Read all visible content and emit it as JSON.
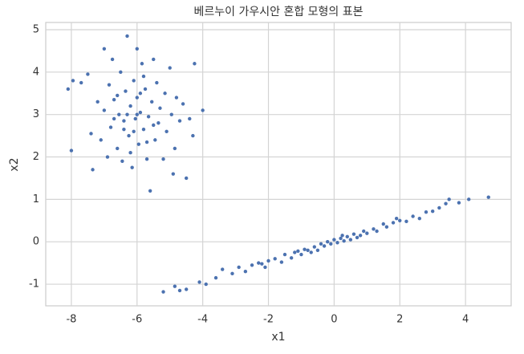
{
  "chart_data": {
    "type": "scatter",
    "title": "베르누이 가우시안 혼합 모형의 표본",
    "xlabel": "x1",
    "ylabel": "x2",
    "color": "#4c72b0",
    "grid": true,
    "xlim": [
      -8.78,
      5.39
    ],
    "ylim": [
      -1.51,
      5.17
    ],
    "xticks": [
      -8,
      -6,
      -4,
      -2,
      0,
      2,
      4
    ],
    "yticks": [
      -1,
      0,
      1,
      2,
      3,
      4,
      5
    ],
    "x": [
      -8.1,
      -8.0,
      -7.95,
      -7.7,
      -7.5,
      -7.4,
      -7.35,
      -7.2,
      -7.1,
      -7.0,
      -7.0,
      -6.9,
      -6.85,
      -6.8,
      -6.75,
      -6.7,
      -6.6,
      -6.55,
      -6.5,
      -6.45,
      -6.4,
      -6.35,
      -6.3,
      -6.25,
      -6.2,
      -6.15,
      -6.1,
      -6.05,
      -6.0,
      -6.0,
      -5.95,
      -5.9,
      -5.85,
      -5.8,
      -5.75,
      -5.7,
      -5.65,
      -5.6,
      -5.55,
      -5.5,
      -5.45,
      -5.4,
      -5.35,
      -5.3,
      -5.2,
      -5.15,
      -5.1,
      -5.0,
      -4.95,
      -4.9,
      -4.85,
      -4.8,
      -4.7,
      -4.6,
      -4.5,
      -4.4,
      -4.3,
      -4.25,
      -4.0,
      -6.3,
      -6.1,
      -5.9,
      -6.2,
      -5.8,
      -6.6,
      -5.7,
      -6.4,
      -6.0,
      -5.5,
      -6.7,
      -5.2,
      -4.85,
      -4.7,
      -4.5,
      -4.1,
      -3.9,
      -3.6,
      -3.4,
      -3.1,
      -2.9,
      -2.7,
      -2.5,
      -2.3,
      -2.1,
      -2.0,
      -1.8,
      -1.6,
      -1.5,
      -1.3,
      -1.2,
      -1.0,
      -0.9,
      -0.8,
      -0.6,
      -0.5,
      -0.4,
      -0.3,
      -0.2,
      -0.1,
      0.0,
      0.1,
      0.2,
      0.3,
      0.4,
      0.5,
      0.6,
      0.8,
      0.9,
      1.0,
      1.2,
      1.3,
      1.5,
      1.6,
      1.8,
      2.0,
      2.2,
      2.4,
      2.6,
      2.8,
      3.0,
      3.2,
      3.4,
      3.5,
      3.8,
      4.1,
      4.7,
      -2.2,
      -1.1,
      0.7,
      1.9,
      -0.7,
      0.25
    ],
    "y": [
      3.6,
      2.15,
      3.8,
      3.75,
      3.95,
      2.55,
      1.7,
      3.3,
      2.4,
      4.55,
      3.1,
      2.0,
      3.7,
      2.7,
      4.3,
      3.35,
      2.2,
      3.0,
      4.0,
      1.9,
      2.85,
      3.55,
      4.85,
      2.5,
      3.2,
      1.75,
      3.8,
      2.9,
      4.55,
      3.4,
      2.3,
      3.05,
      4.2,
      2.65,
      3.6,
      1.95,
      2.95,
      1.2,
      3.3,
      4.3,
      2.4,
      3.75,
      2.8,
      3.15,
      1.95,
      3.5,
      2.6,
      4.1,
      3.0,
      1.6,
      2.2,
      3.4,
      2.85,
      3.25,
      1.5,
      2.9,
      2.5,
      4.2,
      3.1,
      3.0,
      2.6,
      3.5,
      2.1,
      3.9,
      3.45,
      2.35,
      2.65,
      3.0,
      2.75,
      2.9,
      -1.18,
      -1.05,
      -1.15,
      -1.12,
      -0.95,
      -1.0,
      -0.85,
      -0.65,
      -0.75,
      -0.6,
      -0.7,
      -0.55,
      -0.5,
      -0.6,
      -0.45,
      -0.4,
      -0.48,
      -0.3,
      -0.38,
      -0.25,
      -0.3,
      -0.18,
      -0.2,
      -0.12,
      -0.2,
      -0.05,
      -0.1,
      0.0,
      -0.05,
      0.05,
      -0.02,
      0.08,
      0.02,
      0.12,
      0.05,
      0.18,
      0.15,
      0.25,
      0.2,
      0.3,
      0.25,
      0.42,
      0.35,
      0.45,
      0.5,
      0.48,
      0.6,
      0.55,
      0.7,
      0.72,
      0.8,
      0.9,
      1.0,
      0.92,
      1.0,
      1.05,
      -0.52,
      -0.22,
      0.1,
      0.55,
      -0.25,
      0.15
    ]
  }
}
